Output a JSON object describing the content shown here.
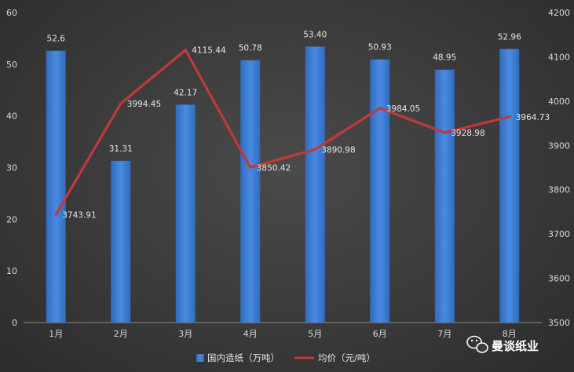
{
  "chart_data": {
    "type": "bar+line",
    "categories": [
      "1月",
      "2月",
      "3月",
      "4月",
      "5月",
      "6月",
      "7月",
      "8月"
    ],
    "series": [
      {
        "name": "国内造纸（万吨）",
        "type": "bar",
        "axis": "left",
        "color": "#3f7fd0",
        "values": [
          52.6,
          31.31,
          42.17,
          50.78,
          53.4,
          50.93,
          48.95,
          52.96
        ],
        "labels": [
          "52.6",
          "31.31",
          "42.17",
          "50.78",
          "53.40",
          "50.93",
          "48.95",
          "52.96"
        ]
      },
      {
        "name": "均价（元/吨）",
        "type": "line",
        "axis": "right",
        "color": "#c0393b",
        "values": [
          3743.91,
          3994.45,
          4115.44,
          3850.42,
          3890.98,
          3984.05,
          3928.98,
          3964.73
        ],
        "labels": [
          "3743.91",
          "3994.45",
          "4115.44",
          "3850.42",
          "3890.98",
          "3984.05",
          "3928.98",
          "3964.73"
        ]
      }
    ],
    "y_left": {
      "min": 0,
      "max": 60,
      "step": 10
    },
    "y_right": {
      "min": 3500,
      "max": 4200,
      "step": 100
    },
    "legend_position": "bottom",
    "grid": false
  },
  "watermark": {
    "text": "曼谈纸业",
    "icon": "wechat-icon"
  }
}
